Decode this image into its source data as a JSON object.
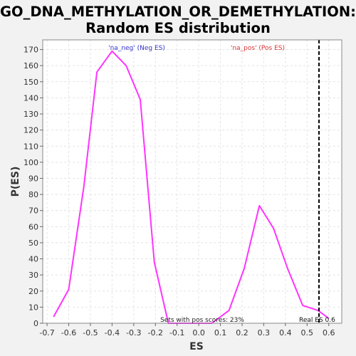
{
  "chart_data": {
    "type": "line",
    "title_line1": "GO_DNA_METHYLATION_OR_DEMETHYLATION:",
    "title_line2": "Random ES distribution",
    "xlabel": "ES",
    "ylabel": "P(ES)",
    "xlim": [
      -0.72,
      0.66
    ],
    "ylim": [
      0,
      176
    ],
    "xticks": [
      -0.7,
      -0.6,
      -0.5,
      -0.4,
      -0.3,
      -0.2,
      -0.1,
      0.0,
      0.1,
      0.2,
      0.3,
      0.4,
      0.5,
      0.6
    ],
    "xtick_labels": [
      "-0.7",
      "-0.6",
      "-0.5",
      "-0.4",
      "-0.3",
      "-0.2",
      "-0.1",
      "0.0",
      "0.1",
      "0.2",
      "0.3",
      "0.4",
      "0.5",
      "0.6"
    ],
    "yticks": [
      0,
      10,
      20,
      30,
      40,
      50,
      60,
      70,
      80,
      90,
      100,
      110,
      120,
      130,
      140,
      150,
      160,
      170
    ],
    "grid": true,
    "series": [
      {
        "color": "#ff33ff",
        "x": [
          -0.67,
          -0.6,
          -0.53,
          -0.47,
          -0.4,
          -0.335,
          -0.27,
          -0.205,
          -0.14,
          -0.075,
          -0.01,
          0.06,
          0.14,
          0.21,
          0.28,
          0.345,
          0.41,
          0.48,
          0.55,
          0.6
        ],
        "y": [
          4,
          21,
          85,
          156,
          169,
          160,
          139,
          38,
          0,
          0,
          0,
          0,
          8,
          34,
          73,
          59,
          34,
          11,
          8,
          3
        ]
      }
    ],
    "marker": {
      "x": 0.555,
      "label": "Real ES 0.6",
      "style": "dashed",
      "color": "#000000"
    },
    "annotations": {
      "neg_label": "'na_neg' (Neg ES)",
      "neg_color": "#3333cc",
      "pos_label": "'na_pos' (Pos ES)",
      "pos_color": "#dd3333",
      "pos_scores": "Sets with pos scores: 23%"
    }
  }
}
